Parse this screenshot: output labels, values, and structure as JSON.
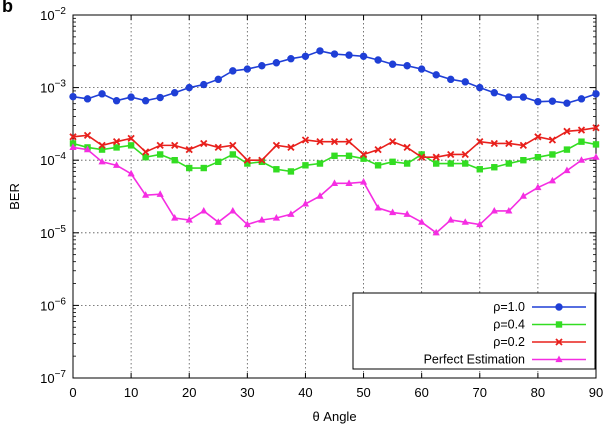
{
  "panel_label": "b",
  "chart_data": {
    "type": "line",
    "xlabel": "θ Angle",
    "ylabel": "BER",
    "xlim": [
      0,
      90
    ],
    "ylim": [
      1e-07,
      0.01
    ],
    "yscale": "log",
    "grid": true,
    "legend_position": "bottom-right",
    "x_ticks": [
      0,
      10,
      20,
      30,
      40,
      50,
      60,
      70,
      80,
      90
    ],
    "y_ticks": [
      {
        "value": 0.01,
        "base": "10",
        "exp": "−2"
      },
      {
        "value": 0.001,
        "base": "10",
        "exp": "−3"
      },
      {
        "value": 0.0001,
        "base": "10",
        "exp": "−4"
      },
      {
        "value": 1e-05,
        "base": "10",
        "exp": "−5"
      },
      {
        "value": 1e-06,
        "base": "10",
        "exp": "−6"
      },
      {
        "value": 1e-07,
        "base": "10",
        "exp": "−7"
      }
    ],
    "x": [
      0,
      2.5,
      5,
      7.5,
      10,
      12.5,
      15,
      17.5,
      20,
      22.5,
      25,
      27.5,
      30,
      32.5,
      35,
      37.5,
      40,
      42.5,
      45,
      47.5,
      50,
      52.5,
      55,
      57.5,
      60,
      62.5,
      65,
      67.5,
      70,
      72.5,
      75,
      77.5,
      80,
      82.5,
      85,
      87.5,
      90
    ],
    "series": [
      {
        "name": "ρ=1.0",
        "color": "#1f3fd6",
        "marker": "circle",
        "values": [
          0.00075,
          0.0007,
          0.00082,
          0.00066,
          0.00074,
          0.00066,
          0.00073,
          0.00085,
          0.001,
          0.0011,
          0.0013,
          0.0017,
          0.0018,
          0.002,
          0.0022,
          0.0025,
          0.0027,
          0.0032,
          0.0029,
          0.0028,
          0.0027,
          0.0024,
          0.0021,
          0.002,
          0.0018,
          0.0015,
          0.0013,
          0.0012,
          0.001,
          0.00085,
          0.00074,
          0.00074,
          0.00064,
          0.00065,
          0.00061,
          0.0007,
          0.00082
        ]
      },
      {
        "name": "ρ=0.4",
        "color": "#33dd22",
        "marker": "square",
        "values": [
          0.00017,
          0.00015,
          0.00014,
          0.00015,
          0.00016,
          0.00011,
          0.00012,
          0.0001,
          7.8e-05,
          7.8e-05,
          9.5e-05,
          0.00012,
          9e-05,
          9.5e-05,
          7.5e-05,
          7e-05,
          8.5e-05,
          9e-05,
          0.000115,
          0.000115,
          0.000105,
          8.5e-05,
          9.5e-05,
          9e-05,
          0.00012,
          9e-05,
          9e-05,
          9e-05,
          7.5e-05,
          8e-05,
          9e-05,
          0.0001,
          0.00011,
          0.00012,
          0.00014,
          0.00018,
          0.000165
        ]
      },
      {
        "name": "ρ=0.2",
        "color": "#e8201c",
        "marker": "cross",
        "values": [
          0.00021,
          0.00022,
          0.00016,
          0.00018,
          0.0002,
          0.00013,
          0.00016,
          0.00016,
          0.00014,
          0.00017,
          0.00015,
          0.00016,
          0.0001,
          0.0001,
          0.00016,
          0.00015,
          0.00019,
          0.00018,
          0.00018,
          0.00018,
          0.00012,
          0.00014,
          0.00018,
          0.00015,
          0.00011,
          0.00011,
          0.00012,
          0.00012,
          0.00018,
          0.00017,
          0.00017,
          0.00016,
          0.00021,
          0.00019,
          0.00025,
          0.00026,
          0.00028
        ]
      },
      {
        "name": "Perfect Estimation",
        "color": "#f52de2",
        "marker": "triangle",
        "values": [
          0.00015,
          0.00014,
          9.5e-05,
          8.5e-05,
          6.5e-05,
          3.3e-05,
          3.4e-05,
          1.6e-05,
          1.5e-05,
          2e-05,
          1.4e-05,
          2e-05,
          1.3e-05,
          1.5e-05,
          1.6e-05,
          1.8e-05,
          2.5e-05,
          3.2e-05,
          4.8e-05,
          4.8e-05,
          5e-05,
          2.2e-05,
          1.9e-05,
          1.8e-05,
          1.4e-05,
          1e-05,
          1.5e-05,
          1.4e-05,
          1.3e-05,
          2e-05,
          2e-05,
          3.2e-05,
          4.2e-05,
          5.2e-05,
          7.2e-05,
          0.0001,
          0.00011
        ]
      }
    ]
  }
}
